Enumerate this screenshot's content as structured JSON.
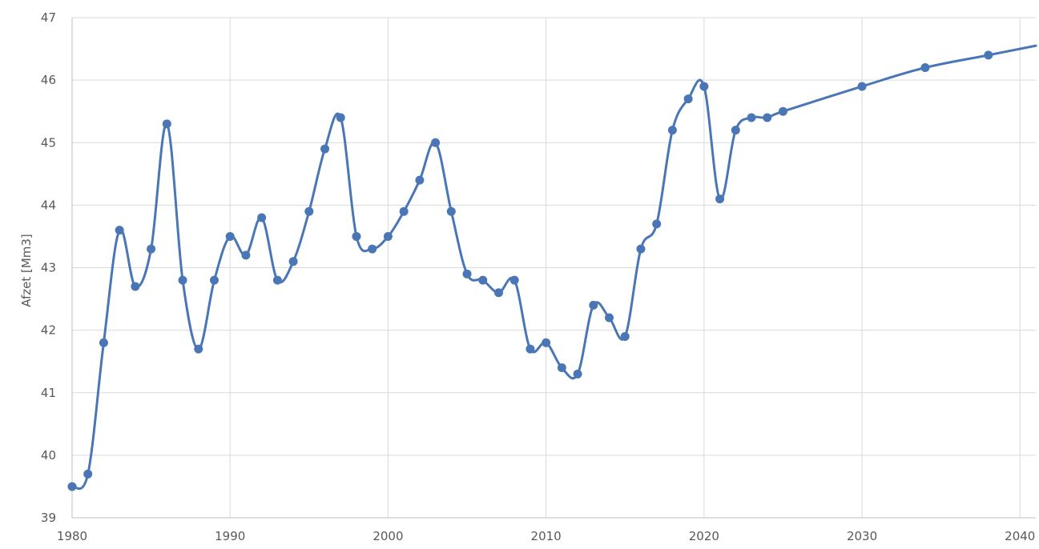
{
  "chart_data": {
    "type": "line",
    "title": "",
    "xlabel": "",
    "ylabel": "Afzet [Mm3]",
    "xlim": [
      1980,
      2041
    ],
    "ylim": [
      39,
      47
    ],
    "x_ticks": [
      1980,
      1990,
      2000,
      2010,
      2020,
      2030,
      2040
    ],
    "y_ticks": [
      39,
      40,
      41,
      42,
      43,
      44,
      45,
      46,
      47
    ],
    "grid": true,
    "legend": "none",
    "series": [
      {
        "color": "#4a76b5",
        "smoothed": true,
        "points": [
          [
            1980,
            39.5
          ],
          [
            1981,
            39.7
          ],
          [
            1982,
            41.8
          ],
          [
            1983,
            43.6
          ],
          [
            1984,
            42.7
          ],
          [
            1985,
            43.3
          ],
          [
            1986,
            45.3
          ],
          [
            1987,
            42.8
          ],
          [
            1988,
            41.7
          ],
          [
            1989,
            42.8
          ],
          [
            1990,
            43.5
          ],
          [
            1991,
            43.2
          ],
          [
            1992,
            43.8
          ],
          [
            1993,
            42.8
          ],
          [
            1994,
            43.1
          ],
          [
            1995,
            43.9
          ],
          [
            1996,
            44.9
          ],
          [
            1997,
            45.4
          ],
          [
            1998,
            43.5
          ],
          [
            1999,
            43.3
          ],
          [
            2000,
            43.5
          ],
          [
            2001,
            43.9
          ],
          [
            2002,
            44.4
          ],
          [
            2003,
            45.0
          ],
          [
            2004,
            43.9
          ],
          [
            2005,
            42.9
          ],
          [
            2006,
            42.8
          ],
          [
            2007,
            42.6
          ],
          [
            2008,
            42.8
          ],
          [
            2009,
            41.7
          ],
          [
            2010,
            41.8
          ],
          [
            2011,
            41.4
          ],
          [
            2012,
            41.3
          ],
          [
            2013,
            42.4
          ],
          [
            2014,
            42.2
          ],
          [
            2015,
            41.9
          ],
          [
            2016,
            43.3
          ],
          [
            2017,
            43.7
          ],
          [
            2018,
            45.2
          ],
          [
            2019,
            45.7
          ],
          [
            2020,
            45.9
          ],
          [
            2021,
            44.1
          ],
          [
            2022,
            45.2
          ],
          [
            2023,
            45.4
          ],
          [
            2024,
            45.4
          ],
          [
            2025,
            45.5
          ],
          [
            2030,
            45.9
          ],
          [
            2034,
            46.2
          ],
          [
            2038,
            46.4
          ],
          [
            2041,
            46.55
          ]
        ],
        "markers_hidden_last": 1
      }
    ]
  }
}
